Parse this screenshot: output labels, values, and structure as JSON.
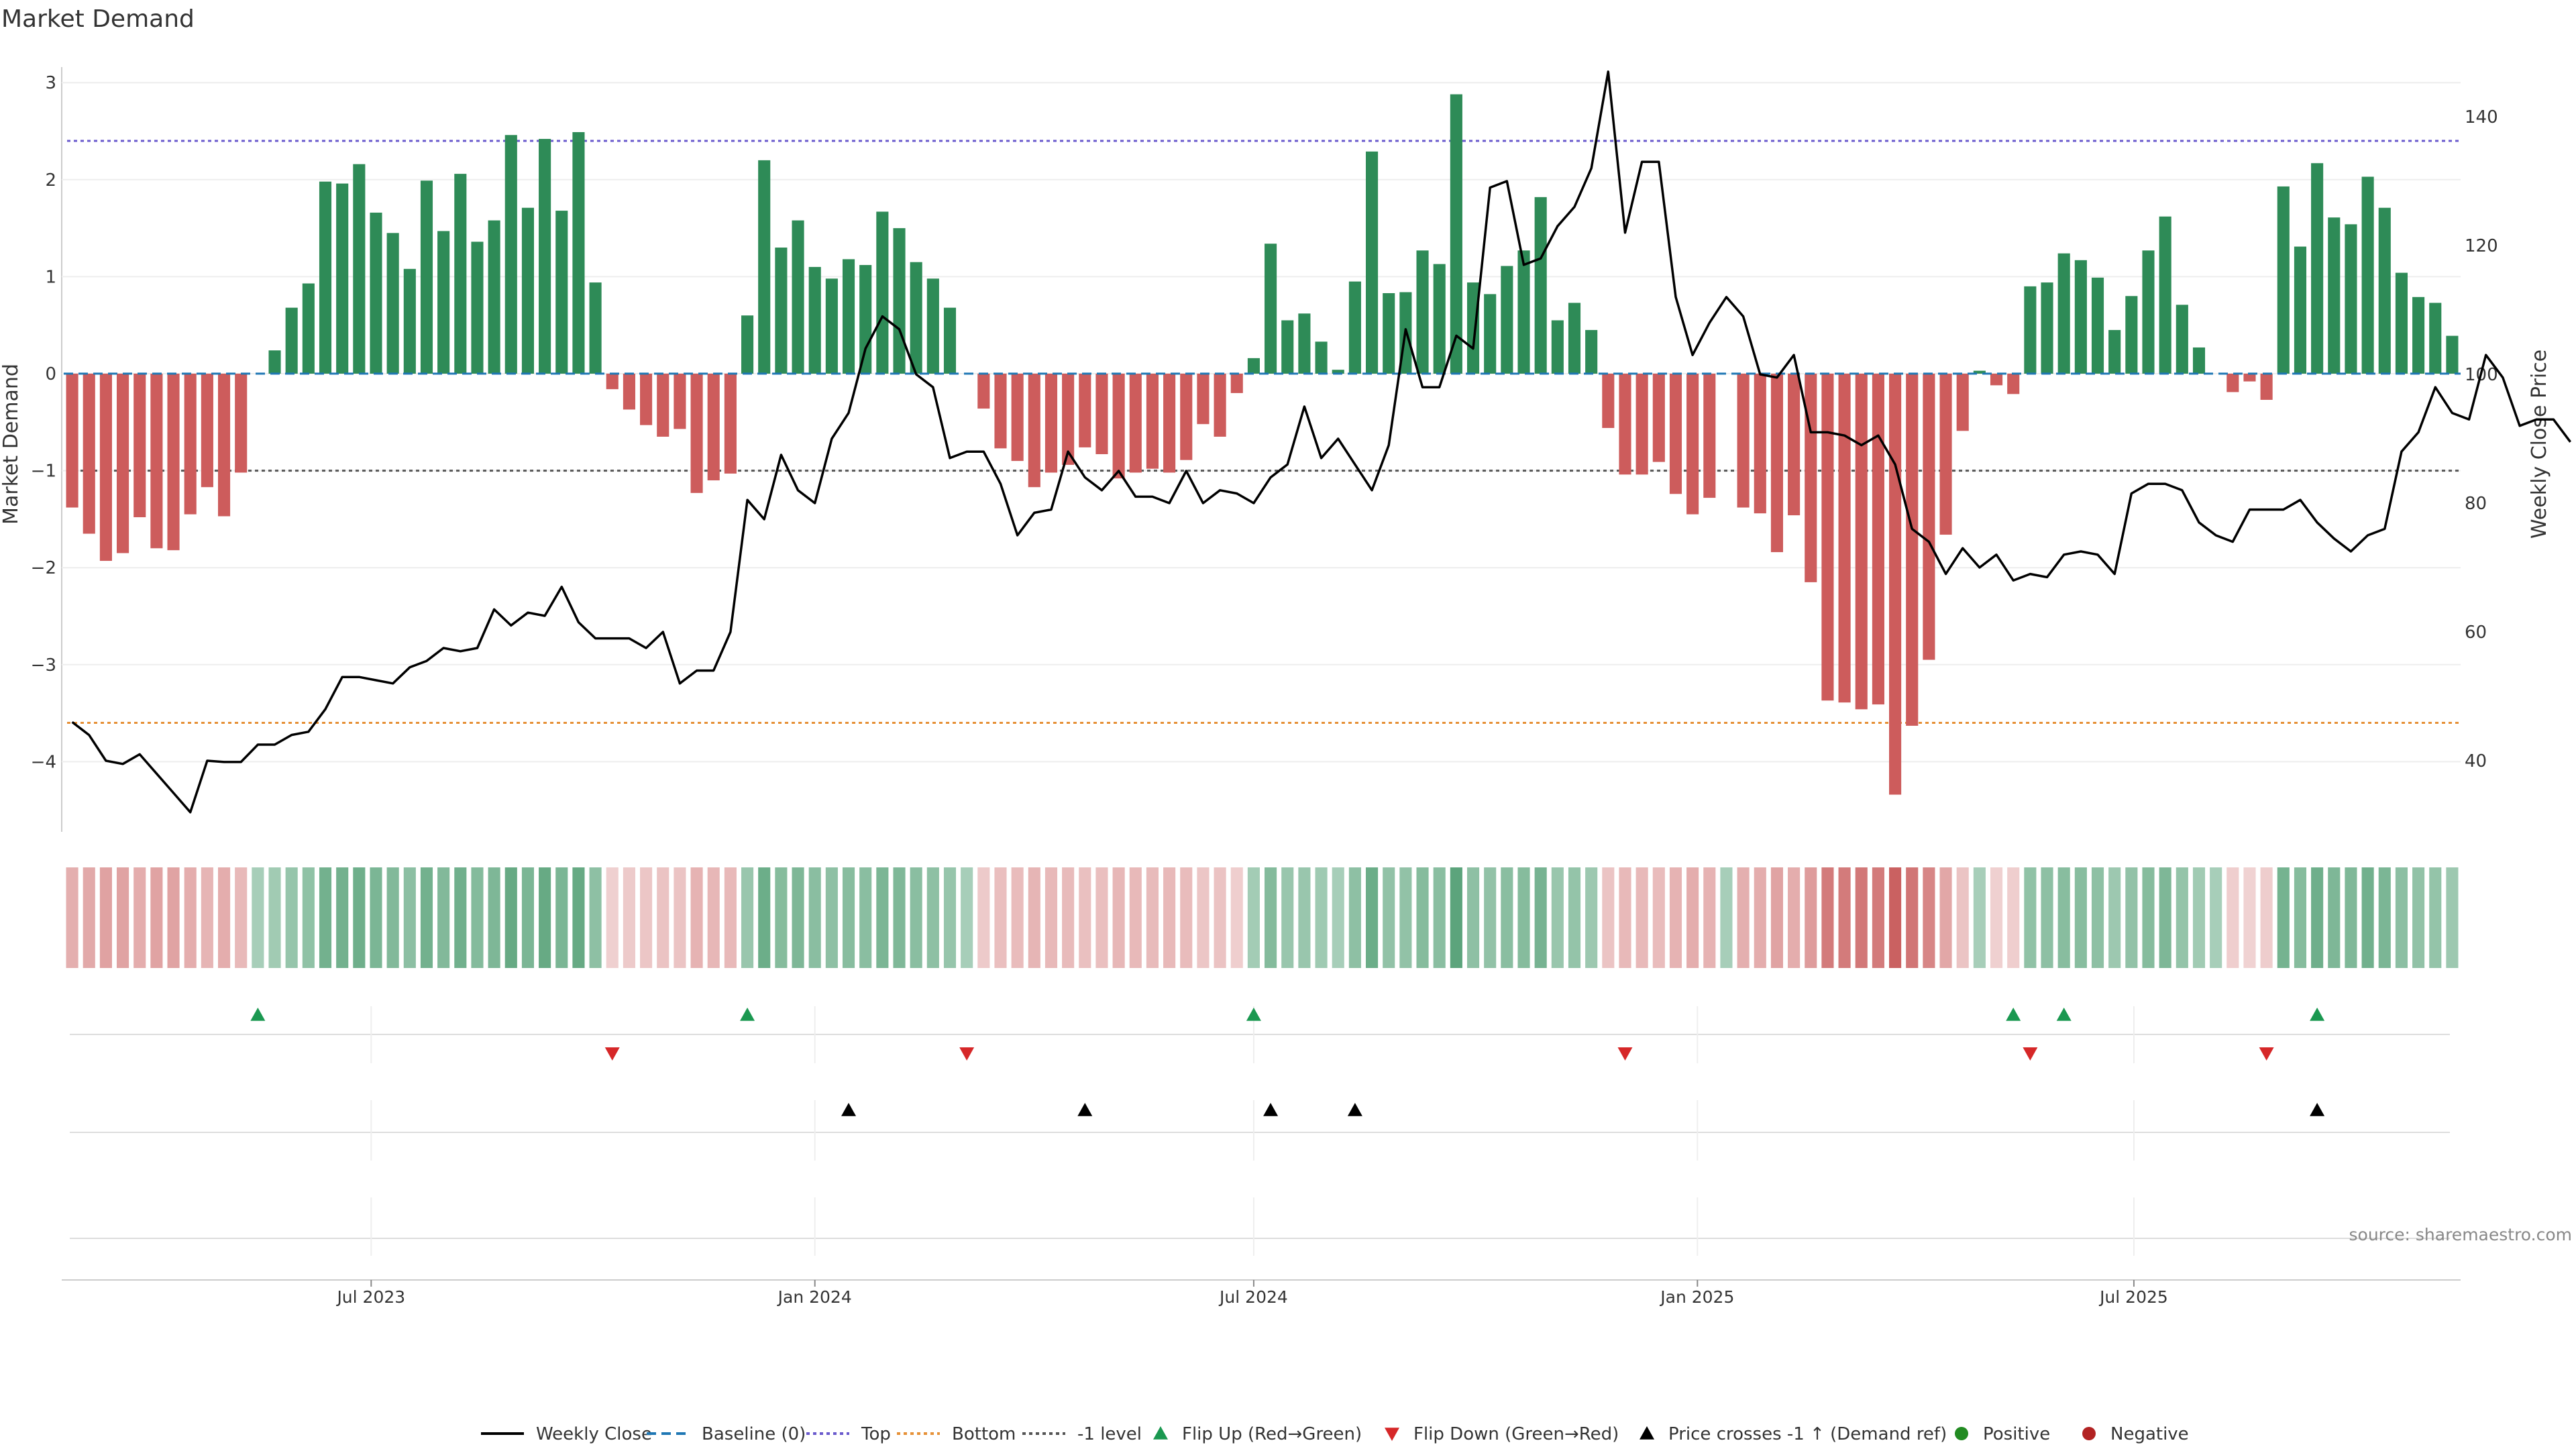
{
  "title": "Market Demand",
  "source": "source: sharemaestro.com",
  "colors": {
    "positive": "#2e8b57",
    "negative": "#cd5c5c",
    "price": "#000000",
    "baseline": "#1f77b4",
    "top": "#6a5acd",
    "bottom": "#e69138",
    "minus_one": "#555555",
    "flip_up": "#1a9850",
    "flip_down": "#d62728",
    "cross": "#000000",
    "legend_positive": "#228b22",
    "legend_negative": "#b22222"
  },
  "chart_data": {
    "type": "bar",
    "x_start": "2023-02-27",
    "x_step_days": 7,
    "x_ticks": [
      "Jul 2023",
      "Jan 2024",
      "Jul 2024",
      "Jan 2025",
      "Jul 2025"
    ],
    "x_tick_dates": [
      "2023-07-01",
      "2024-01-01",
      "2024-07-01",
      "2025-01-01",
      "2025-07-01"
    ],
    "ylabel": "Market Demand",
    "y2label": "Weekly Close Price",
    "ylim": [
      -4.8,
      3.4
    ],
    "y_ticks": [
      3,
      2,
      1,
      0,
      -1,
      -2,
      -3,
      -4
    ],
    "y_tick_labels": [
      "3",
      "2",
      "1",
      "0",
      "−1",
      "−2",
      "−3",
      "−4"
    ],
    "y2lim": [
      30,
      148
    ],
    "y2_ticks": [
      140,
      120,
      100,
      80,
      60,
      40
    ],
    "levels": {
      "top": 2.4,
      "bottom": -3.6,
      "minus_one": -1.0,
      "baseline": 0
    },
    "demand": [
      -1.38,
      -1.65,
      -1.93,
      -1.85,
      -1.48,
      -1.8,
      -1.82,
      -1.45,
      -1.17,
      -1.47,
      -1.02,
      0.0,
      0.24,
      0.68,
      0.93,
      1.98,
      1.96,
      2.16,
      1.66,
      1.45,
      1.08,
      1.99,
      1.47,
      2.06,
      1.36,
      1.58,
      2.46,
      1.71,
      2.42,
      1.68,
      2.49,
      0.94,
      -0.16,
      -0.37,
      -0.53,
      -0.65,
      -0.57,
      -1.23,
      -1.1,
      -1.03,
      0.6,
      2.2,
      1.3,
      1.58,
      1.1,
      0.98,
      1.18,
      1.12,
      1.67,
      1.5,
      1.15,
      0.98,
      0.68,
      0.0,
      -0.36,
      -0.77,
      -0.9,
      -1.17,
      -1.02,
      -0.94,
      -0.76,
      -0.83,
      -1.08,
      -1.02,
      -0.98,
      -1.02,
      -0.89,
      -0.52,
      -0.65,
      -0.2,
      0.16,
      1.34,
      0.55,
      0.62,
      0.33,
      0.04,
      0.95,
      2.29,
      0.83,
      0.84,
      1.27,
      1.13,
      2.88,
      0.94,
      0.82,
      1.11,
      1.27,
      1.82,
      0.55,
      0.73,
      0.45,
      -0.56,
      -1.04,
      -1.04,
      -0.91,
      -1.24,
      -1.45,
      -1.28,
      -0.0,
      -1.38,
      -1.44,
      -1.84,
      -1.46,
      -2.15,
      -3.37,
      -3.39,
      -3.46,
      -3.41,
      -4.34,
      -3.63,
      -2.95,
      -1.66,
      -0.59,
      0.03,
      -0.12,
      -0.21,
      0.9,
      0.94,
      1.24,
      1.17,
      0.99,
      0.45,
      0.8,
      1.27,
      1.62,
      0.71,
      0.27,
      0.0,
      -0.19,
      -0.08,
      -0.27,
      1.93,
      1.31,
      2.17,
      1.61,
      1.54,
      2.03,
      1.71,
      1.04,
      0.79,
      0.73,
      0.39
    ],
    "price": [
      46,
      44,
      40,
      39.5,
      41,
      38,
      35,
      32,
      40,
      39.8,
      39.8,
      42.5,
      42.5,
      44,
      44.5,
      48,
      53,
      53,
      52.5,
      52,
      54.5,
      55.5,
      57.5,
      57,
      57.5,
      63.5,
      61,
      63,
      62.5,
      67,
      61.5,
      59,
      59,
      59,
      57.5,
      60,
      52,
      54,
      54,
      60,
      80.5,
      77.5,
      87.5,
      82,
      80,
      90,
      94,
      104,
      109,
      107,
      100,
      98,
      87,
      88,
      88,
      83,
      75,
      78.5,
      79,
      88,
      84,
      82,
      85,
      81,
      81,
      80,
      85,
      80,
      82,
      81.5,
      80,
      84,
      86,
      95,
      87,
      90,
      86,
      82,
      89,
      107,
      98,
      98,
      106,
      104,
      129,
      130,
      117,
      118,
      123,
      126,
      132,
      147,
      122,
      133,
      133,
      112,
      103,
      108,
      112,
      109,
      100,
      99.5,
      103,
      91,
      91,
      90.5,
      89,
      90.5,
      86,
      76,
      74,
      69,
      73,
      70,
      72,
      68,
      69,
      68.5,
      72,
      72.5,
      72,
      69,
      81.5,
      83,
      83,
      82,
      77,
      75,
      74,
      79,
      79,
      79,
      80.5,
      77,
      74.5,
      72.5,
      75,
      76,
      88,
      91,
      98,
      94,
      93,
      103,
      99.5,
      92,
      93,
      93,
      89.5
    ],
    "flip_up_idx": [
      11,
      40,
      70,
      115,
      118,
      133
    ],
    "flip_down_idx": [
      32,
      53,
      92,
      116,
      130
    ],
    "price_cross_idx": [
      46,
      60,
      71,
      76,
      133
    ],
    "series": [
      {
        "name": "Weekly Close"
      },
      {
        "name": "Baseline (0)"
      },
      {
        "name": "Top"
      },
      {
        "name": "Bottom"
      },
      {
        "name": "-1 level"
      },
      {
        "name": "Flip Up (Red→Green)"
      },
      {
        "name": "Flip Down (Green→Red)"
      },
      {
        "name": "Price crosses -1 ↑ (Demand ref)"
      },
      {
        "name": "Positive"
      },
      {
        "name": "Negative"
      }
    ],
    "legend_position": "bottom-center"
  }
}
